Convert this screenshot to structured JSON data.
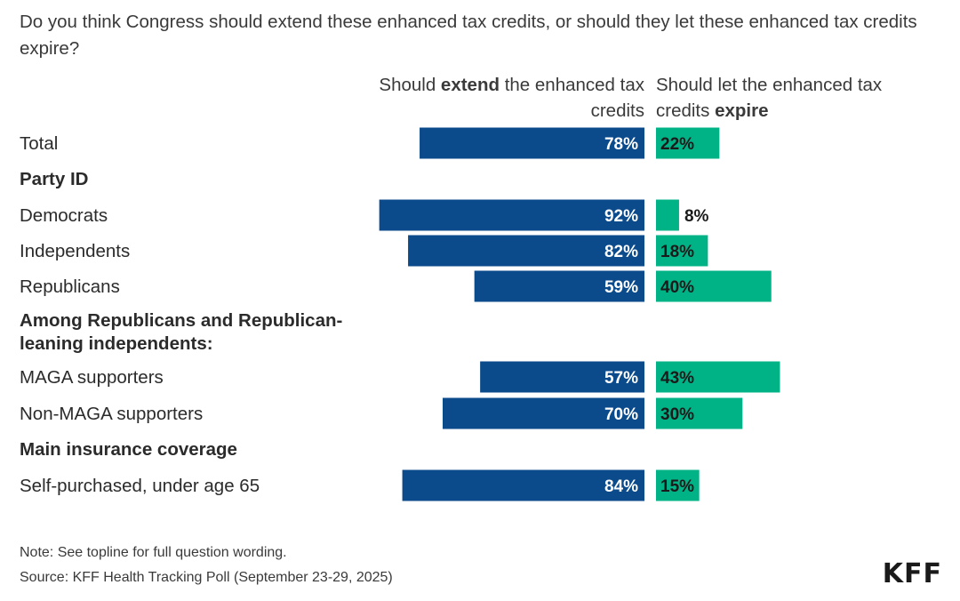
{
  "title": "Do you think Congress should extend these enhanced tax credits, or should they let these enhanced tax credits expire?",
  "columns": {
    "extend_pre": "Should ",
    "extend_bold": "extend",
    "extend_post": " the enhanced tax credits",
    "expire_pre": "Should let the enhanced tax credits ",
    "expire_bold": "expire"
  },
  "colors": {
    "extend": "#0b4a8b",
    "expire": "#00b386"
  },
  "chart_data": {
    "type": "bar",
    "orientation": "horizontal-diverging",
    "title": "Do you think Congress should extend these enhanced tax credits, or should they let these enhanced tax credits expire?",
    "series": [
      {
        "name": "Should extend the enhanced tax credits",
        "color": "#0b4a8b"
      },
      {
        "name": "Should let the enhanced tax credits expire",
        "color": "#00b386"
      }
    ],
    "unit": "%",
    "rows": [
      {
        "kind": "row",
        "label": "Total",
        "extend": 78,
        "expire": 22
      },
      {
        "kind": "group",
        "label": "Party ID"
      },
      {
        "kind": "row",
        "label": "Democrats",
        "extend": 92,
        "expire": 8
      },
      {
        "kind": "row",
        "label": "Independents",
        "extend": 82,
        "expire": 18
      },
      {
        "kind": "row",
        "label": "Republicans",
        "extend": 59,
        "expire": 40
      },
      {
        "kind": "group",
        "label": "Among Republicans and Republican-leaning independents:",
        "lines": [
          "Among Republicans and Republican-",
          "leaning independents:"
        ]
      },
      {
        "kind": "row",
        "label": "MAGA supporters",
        "extend": 57,
        "expire": 43
      },
      {
        "kind": "row",
        "label": "Non-MAGA supporters",
        "extend": 70,
        "expire": 30
      },
      {
        "kind": "group",
        "label": "Main insurance coverage"
      },
      {
        "kind": "row",
        "label": "Self-purchased, under age 65",
        "extend": 84,
        "expire": 15
      }
    ]
  },
  "footer": {
    "note": "Note: See topline for full question wording.",
    "source": "Source: KFF Health Tracking Poll (September 23-29, 2025)",
    "logo": "KFF"
  }
}
